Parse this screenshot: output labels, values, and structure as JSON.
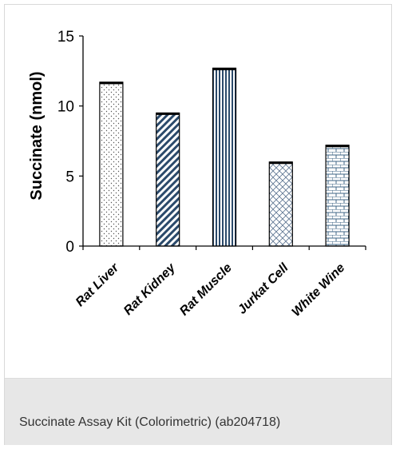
{
  "caption": "Succinate Assay Kit (Colorimetric) (ab204718)",
  "colors": {
    "bar_stroke": "#000000",
    "bar_fill": "#ffffff",
    "pattern_line": "#2b4a6b",
    "caption_bg": "#e7e7e7"
  },
  "chart_data": {
    "type": "bar",
    "title": "",
    "xlabel": "",
    "ylabel": "Succinate (nmol)",
    "ylim": [
      0,
      15
    ],
    "yticks": [
      0,
      5,
      10,
      15
    ],
    "grid": false,
    "categories": [
      "Rat Liver",
      "Rat Kidney",
      "Rat Muscle",
      "Jurkat Cell",
      "White Wine"
    ],
    "values": [
      11.7,
      9.5,
      12.7,
      6.0,
      7.2
    ],
    "fill_patterns": [
      "dots",
      "diagonal-stripes",
      "vertical-stripes",
      "crosshatch",
      "brick"
    ]
  }
}
